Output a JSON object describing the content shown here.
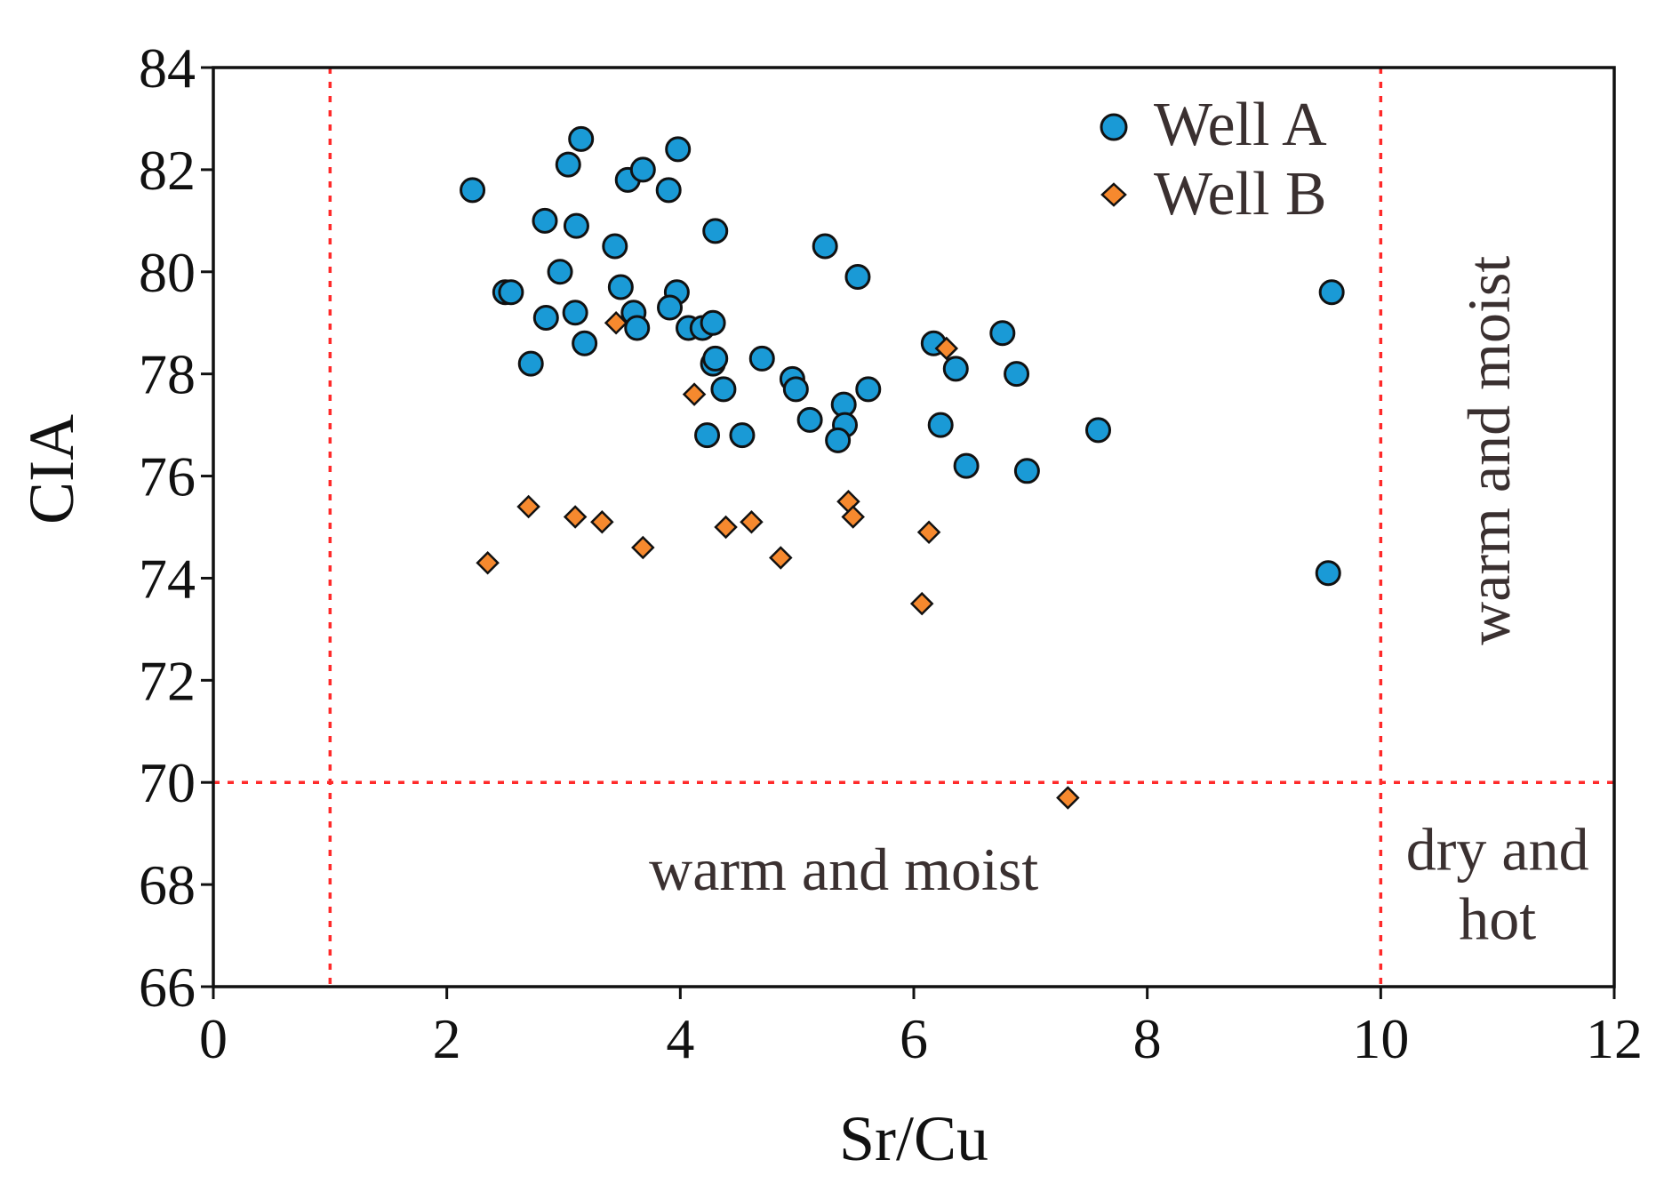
{
  "chart_data": {
    "type": "scatter",
    "title": "",
    "xlabel": "Sr/Cu",
    "ylabel": "CIA",
    "xlim": [
      0,
      12
    ],
    "ylim": [
      66,
      84
    ],
    "xticks": [
      0,
      2,
      4,
      6,
      8,
      10,
      12
    ],
    "yticks": [
      66,
      68,
      70,
      72,
      74,
      76,
      78,
      80,
      82,
      84
    ],
    "xtick_labels": [
      "0",
      "2",
      "4",
      "6",
      "8",
      "10",
      "12"
    ],
    "ytick_labels": [
      "66",
      "68",
      "70",
      "72",
      "74",
      "76",
      "78",
      "80",
      "82",
      "84"
    ],
    "grid": false,
    "legend_position": "top-right",
    "reference_lines": [
      {
        "orientation": "vertical",
        "value": 1,
        "color": "#ff2a2a",
        "style": "dotted"
      },
      {
        "orientation": "vertical",
        "value": 10,
        "color": "#ff2a2a",
        "style": "dotted"
      },
      {
        "orientation": "horizontal",
        "value": 70,
        "color": "#ff2a2a",
        "style": "dotted"
      }
    ],
    "regions": [
      {
        "label": "warm and moist",
        "x": 5.4,
        "y": 67.9,
        "rotation": 0
      },
      {
        "label": "warm and moist",
        "x": 11.1,
        "y": 76.5,
        "rotation": -90
      },
      {
        "label": "dry and hot",
        "lines": [
          "dry and",
          "hot"
        ],
        "x": 11.0,
        "y": 67.7,
        "rotation": 0
      }
    ],
    "series": [
      {
        "name": "Well A",
        "marker": "circle",
        "color": "#1a9ad6",
        "points": [
          [
            2.22,
            81.6
          ],
          [
            3.04,
            82.1
          ],
          [
            3.15,
            82.6
          ],
          [
            3.55,
            81.8
          ],
          [
            3.68,
            82.0
          ],
          [
            3.9,
            81.6
          ],
          [
            3.98,
            82.4
          ],
          [
            2.84,
            81.0
          ],
          [
            3.11,
            80.9
          ],
          [
            4.3,
            80.8
          ],
          [
            3.44,
            80.5
          ],
          [
            5.24,
            80.5
          ],
          [
            2.5,
            79.6
          ],
          [
            2.55,
            79.6
          ],
          [
            2.97,
            80.0
          ],
          [
            3.49,
            79.7
          ],
          [
            3.97,
            79.6
          ],
          [
            5.52,
            79.9
          ],
          [
            9.58,
            79.6
          ],
          [
            2.85,
            79.1
          ],
          [
            3.1,
            79.2
          ],
          [
            3.6,
            79.2
          ],
          [
            3.63,
            78.9
          ],
          [
            3.91,
            79.3
          ],
          [
            4.07,
            78.9
          ],
          [
            4.19,
            78.9
          ],
          [
            4.28,
            79.0
          ],
          [
            6.76,
            78.8
          ],
          [
            3.18,
            78.6
          ],
          [
            6.17,
            78.6
          ],
          [
            2.72,
            78.2
          ],
          [
            4.28,
            78.2
          ],
          [
            4.3,
            78.3
          ],
          [
            4.7,
            78.3
          ],
          [
            4.96,
            77.9
          ],
          [
            6.36,
            78.1
          ],
          [
            6.88,
            78.0
          ],
          [
            4.37,
            77.7
          ],
          [
            4.99,
            77.7
          ],
          [
            5.61,
            77.7
          ],
          [
            5.11,
            77.1
          ],
          [
            5.4,
            77.4
          ],
          [
            5.41,
            77.0
          ],
          [
            6.23,
            77.0
          ],
          [
            4.23,
            76.8
          ],
          [
            4.53,
            76.8
          ],
          [
            5.35,
            76.7
          ],
          [
            7.58,
            76.9
          ],
          [
            6.45,
            76.2
          ],
          [
            6.97,
            76.1
          ],
          [
            9.55,
            74.1
          ]
        ]
      },
      {
        "name": "Well B",
        "marker": "diamond",
        "color": "#f6892e",
        "points": [
          [
            3.45,
            79.0
          ],
          [
            6.28,
            78.5
          ],
          [
            4.12,
            77.6
          ],
          [
            2.7,
            75.4
          ],
          [
            3.1,
            75.2
          ],
          [
            3.33,
            75.1
          ],
          [
            3.68,
            74.6
          ],
          [
            4.39,
            75.0
          ],
          [
            4.61,
            75.1
          ],
          [
            5.44,
            75.5
          ],
          [
            5.48,
            75.2
          ],
          [
            6.13,
            74.9
          ],
          [
            2.35,
            74.3
          ],
          [
            4.86,
            74.4
          ],
          [
            6.07,
            73.5
          ],
          [
            7.32,
            69.7
          ]
        ]
      }
    ]
  }
}
